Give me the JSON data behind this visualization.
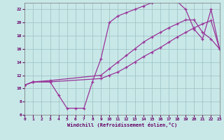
{
  "xlabel": "Windchill (Refroidissement éolien,°C)",
  "xlim": [
    0,
    23
  ],
  "ylim": [
    6,
    23
  ],
  "xticks": [
    0,
    1,
    2,
    3,
    4,
    5,
    6,
    7,
    8,
    9,
    10,
    11,
    12,
    13,
    14,
    15,
    16,
    17,
    18,
    19,
    20,
    21,
    22,
    23
  ],
  "yticks": [
    6,
    8,
    10,
    12,
    14,
    16,
    18,
    20,
    22
  ],
  "bg_color": "#c8e8e8",
  "line_color": "#993399",
  "line1_x": [
    0,
    1,
    3,
    4,
    5,
    6,
    7,
    8,
    9,
    10,
    11,
    12,
    13,
    14,
    15,
    16,
    17,
    18,
    19,
    20,
    21,
    22,
    23
  ],
  "line1_y": [
    10.5,
    11.0,
    11.0,
    9.0,
    7.0,
    7.0,
    7.0,
    11.0,
    14.5,
    20.0,
    21.0,
    21.5,
    22.0,
    22.5,
    23.0,
    23.2,
    23.4,
    23.2,
    22.0,
    19.0,
    17.5,
    22.0,
    16.0
  ],
  "line2_x": [
    0,
    1,
    3,
    9,
    10,
    11,
    12,
    13,
    14,
    15,
    16,
    17,
    18,
    19,
    20,
    21,
    22,
    23
  ],
  "line2_y": [
    10.5,
    11.0,
    11.0,
    11.5,
    12.0,
    12.5,
    13.2,
    14.0,
    14.8,
    15.5,
    16.2,
    17.0,
    17.8,
    18.5,
    19.2,
    19.8,
    20.3,
    16.0
  ],
  "line3_x": [
    0,
    1,
    3,
    9,
    10,
    11,
    12,
    13,
    14,
    15,
    16,
    17,
    18,
    19,
    20,
    21,
    22,
    23
  ],
  "line3_y": [
    10.5,
    11.0,
    11.2,
    12.0,
    13.0,
    14.0,
    15.0,
    16.0,
    17.0,
    17.8,
    18.5,
    19.2,
    19.8,
    20.4,
    20.4,
    18.5,
    17.5,
    16.0
  ]
}
